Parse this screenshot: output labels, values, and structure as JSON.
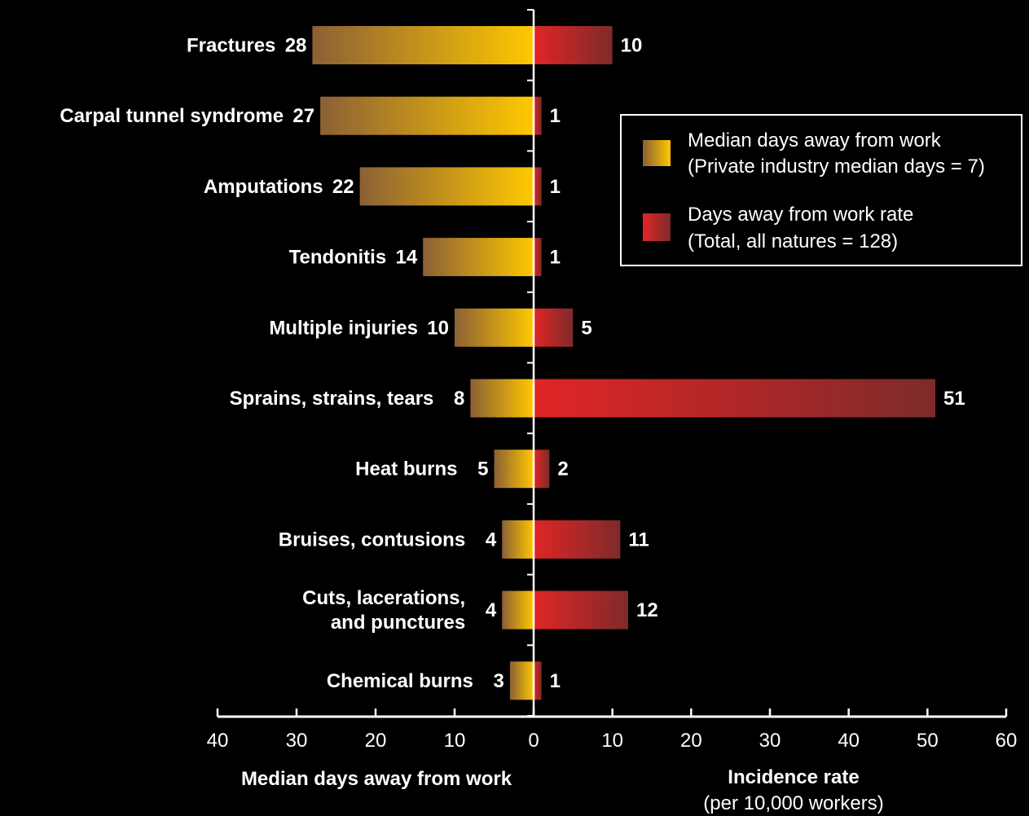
{
  "chart_data": {
    "type": "bar",
    "orientation": "horizontal-diverging",
    "categories": [
      [
        "Fractures"
      ],
      [
        "Carpal tunnel syndrome"
      ],
      [
        "Amputations"
      ],
      [
        "Tendonitis"
      ],
      [
        "Multiple injuries"
      ],
      [
        "Sprains, strains, tears"
      ],
      [
        "Heat burns"
      ],
      [
        "Bruises, contusions"
      ],
      [
        "Cuts, lacerations,",
        "and punctures"
      ],
      [
        "Chemical burns"
      ]
    ],
    "series": [
      {
        "name": "Median days away from work",
        "side": "left",
        "values": [
          28,
          27,
          22,
          14,
          10,
          8,
          5,
          4,
          4,
          3
        ],
        "color_from": "#8B6035",
        "color_to": "#FFC800"
      },
      {
        "name": "Days away from work rate",
        "side": "right",
        "values": [
          10,
          1,
          1,
          1,
          5,
          51,
          2,
          11,
          12,
          1
        ],
        "color_from": "#E12525",
        "color_to": "#7E2A2A"
      }
    ],
    "left_axis": {
      "title": "Median days away from work",
      "subtitle": "",
      "range": [
        40,
        0
      ],
      "ticks": [
        "40",
        "30",
        "20",
        "10",
        "0"
      ]
    },
    "right_axis": {
      "title": "Incidence rate",
      "subtitle": "(per 10,000 workers)",
      "range": [
        0,
        60
      ],
      "ticks": [
        "10",
        "20",
        "30",
        "40",
        "50",
        "60"
      ]
    },
    "legend": {
      "placement": "top-right",
      "items": [
        {
          "line1": "Median days away from work",
          "line2": "(Private industry median days = 7)"
        },
        {
          "line1": "Days away from work rate",
          "line2": "(Total, all natures = 128)"
        }
      ]
    },
    "grid": false,
    "background": "#000000",
    "text_color": "#FFFFFF"
  }
}
